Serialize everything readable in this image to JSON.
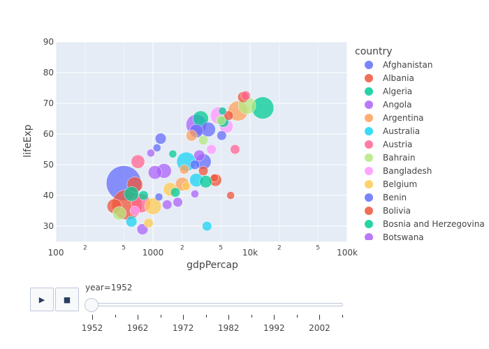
{
  "chart_data": {
    "type": "scatter",
    "subtype": "bubble",
    "x_scale": "log",
    "xlabel": "gdpPercap",
    "ylabel": "lifeExp",
    "xlim": [
      100,
      100000
    ],
    "ylim": [
      25,
      90
    ],
    "grid": true,
    "legend_title": "country",
    "legend_position": "right",
    "x_tick_labels": [
      "100",
      "2",
      "5",
      "1000",
      "2",
      "5",
      "10k",
      "2",
      "5",
      "100k"
    ],
    "y_tick_labels": [
      "30",
      "40",
      "50",
      "60",
      "70",
      "80",
      "90"
    ],
    "legend": [
      {
        "name": "Afghanistan",
        "color": "#636efa"
      },
      {
        "name": "Albania",
        "color": "#ef553b"
      },
      {
        "name": "Algeria",
        "color": "#00cc96"
      },
      {
        "name": "Angola",
        "color": "#ab63fa"
      },
      {
        "name": "Argentina",
        "color": "#ffa15a"
      },
      {
        "name": "Australia",
        "color": "#19d3f3"
      },
      {
        "name": "Austria",
        "color": "#ff6692"
      },
      {
        "name": "Bahrain",
        "color": "#b6e880"
      },
      {
        "name": "Bangladesh",
        "color": "#ff97ff"
      },
      {
        "name": "Belgium",
        "color": "#fecb52"
      },
      {
        "name": "Benin",
        "color": "#636efa"
      },
      {
        "name": "Bolivia",
        "color": "#ef553b"
      },
      {
        "name": "Bosnia and Herzegovina",
        "color": "#00cc96"
      },
      {
        "name": "Botswana",
        "color": "#ab63fa"
      }
    ],
    "points": [
      [
        500,
        44,
        4
      ],
      [
        540,
        37,
        3
      ],
      [
        13500,
        68.5,
        1.6
      ],
      [
        2800,
        63,
        1.4
      ],
      [
        9300,
        69.3,
        1.0
      ],
      [
        7500,
        67.5,
        1.3
      ],
      [
        2200,
        51,
        1.2
      ],
      [
        750,
        37.5,
        1.2
      ],
      [
        4800,
        66,
        1.0
      ],
      [
        3300,
        51,
        0.8
      ],
      [
        1000,
        36.5,
        0.9
      ],
      [
        650,
        43.5,
        0.8
      ],
      [
        3100,
        65,
        0.8
      ],
      [
        1300,
        48,
        0.7
      ],
      [
        3700,
        61.5,
        0.7
      ],
      [
        1050,
        47.5,
        0.6
      ],
      [
        2000,
        43.7,
        0.6
      ],
      [
        2800,
        45,
        0.6
      ],
      [
        400,
        36.5,
        0.7
      ],
      [
        700,
        51,
        0.6
      ],
      [
        600,
        40.5,
        0.7
      ],
      [
        450,
        34.2,
        0.6
      ],
      [
        5700,
        62.5,
        0.6
      ],
      [
        1500,
        42,
        0.6
      ],
      [
        2800,
        61,
        0.6
      ],
      [
        4400,
        45,
        0.5
      ],
      [
        3500,
        44.5,
        0.5
      ],
      [
        780,
        29,
        0.4
      ],
      [
        1200,
        58.5,
        0.4
      ],
      [
        8500,
        72,
        0.4
      ],
      [
        9000,
        72.5,
        0.3
      ],
      [
        5300,
        64,
        0.4
      ],
      [
        3000,
        53,
        0.4
      ],
      [
        2500,
        59.5,
        0.4
      ],
      [
        3300,
        58,
        0.3
      ],
      [
        4000,
        55,
        0.3
      ],
      [
        900,
        31,
        0.3
      ],
      [
        5100,
        59.5,
        0.3
      ],
      [
        6000,
        66,
        0.3
      ],
      [
        600,
        31.5,
        0.4
      ],
      [
        800,
        40,
        0.3
      ],
      [
        1400,
        37,
        0.3
      ],
      [
        2700,
        50,
        0.3
      ],
      [
        3300,
        48,
        0.3
      ],
      [
        1700,
        41,
        0.3
      ],
      [
        1800,
        37.8,
        0.3
      ],
      [
        2100,
        48.5,
        0.3
      ],
      [
        3600,
        30,
        0.3
      ],
      [
        7000,
        55,
        0.3
      ],
      [
        5000,
        64.5,
        0.3
      ],
      [
        1100,
        55.5,
        0.2
      ],
      [
        650,
        35,
        0.3
      ],
      [
        4300,
        45.7,
        0.2
      ],
      [
        5200,
        67.5,
        0.2
      ],
      [
        950,
        53.8,
        0.2
      ],
      [
        2200,
        43,
        0.25
      ],
      [
        1150,
        39.5,
        0.2
      ],
      [
        6300,
        40,
        0.2
      ],
      [
        1600,
        53.5,
        0.2
      ],
      [
        2700,
        40.5,
        0.2
      ]
    ]
  },
  "animation": {
    "play_icon": "play-icon",
    "stop_icon": "stop-icon",
    "slider_label": "year=1952",
    "current_year": 1952,
    "year_range": [
      1952,
      2007
    ],
    "tick_labels": [
      "1952",
      "1962",
      "1972",
      "1982",
      "1992",
      "2002"
    ],
    "tick_years": [
      1952,
      1962,
      1972,
      1982,
      1992,
      2002
    ]
  }
}
